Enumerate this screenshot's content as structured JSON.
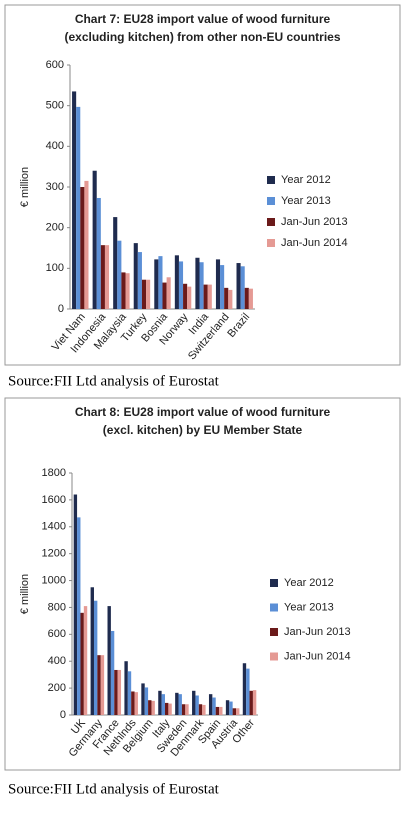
{
  "chart_data": [
    {
      "type": "bar",
      "title": [
        "Chart 7: EU28 import value of wood furniture",
        "(excluding kitchen) from other non-EU countries"
      ],
      "y_label": "€ million",
      "categories": [
        "Viet Nam",
        "Indonesia",
        "Malaysia",
        "Turkey",
        "Bosnia",
        "Norway",
        "India",
        "Switzerland",
        "Brazil"
      ],
      "series": [
        {
          "name": "Year 2012",
          "color": "#1f2b4e",
          "values": [
            535,
            340,
            226,
            162,
            122,
            132,
            126,
            122,
            113
          ]
        },
        {
          "name": "Year 2013",
          "color": "#5b8fd6",
          "values": [
            497,
            273,
            168,
            140,
            130,
            117,
            115,
            108,
            105
          ]
        },
        {
          "name": "Jan-Jun 2013",
          "color": "#6b1a1a",
          "values": [
            300,
            157,
            90,
            72,
            65,
            62,
            60,
            52,
            52
          ]
        },
        {
          "name": "Jan-Jun 2014",
          "color": "#e59a94",
          "values": [
            315,
            157,
            88,
            72,
            78,
            55,
            60,
            47,
            50
          ]
        }
      ],
      "ylim": [
        0,
        600
      ],
      "yticks": [
        0,
        100,
        200,
        300,
        400,
        500,
        600
      ],
      "legend": "right",
      "source": "Source:FII Ltd analysis of Eurostat"
    },
    {
      "type": "bar",
      "title": [
        "Chart 8: EU28 import value of wood furniture",
        "(excl. kitchen) by EU Member State"
      ],
      "y_label": "€ million",
      "categories": [
        "UK",
        "Germany",
        "France",
        "Nethlnds",
        "Belgium",
        "Italy",
        "Sweden",
        "Denmark",
        "Spain",
        "Austria",
        "Other"
      ],
      "series": [
        {
          "name": "Year 2012",
          "color": "#1f2b4e",
          "values": [
            1640,
            950,
            810,
            400,
            235,
            180,
            165,
            180,
            155,
            110,
            385
          ]
        },
        {
          "name": "Year 2013",
          "color": "#5b8fd6",
          "values": [
            1470,
            850,
            625,
            325,
            205,
            155,
            155,
            145,
            130,
            100,
            345
          ]
        },
        {
          "name": "Jan-Jun 2013",
          "color": "#6b1a1a",
          "values": [
            760,
            445,
            335,
            175,
            110,
            90,
            80,
            80,
            60,
            50,
            180
          ]
        },
        {
          "name": "Jan-Jun 2014",
          "color": "#e59a94",
          "values": [
            810,
            445,
            335,
            170,
            105,
            85,
            80,
            75,
            60,
            50,
            185
          ]
        }
      ],
      "ylim": [
        0,
        1800
      ],
      "yticks": [
        0,
        200,
        400,
        600,
        800,
        1000,
        1200,
        1400,
        1600,
        1800
      ],
      "legend": "right",
      "source": "Source:FII Ltd analysis of Eurostat"
    }
  ]
}
